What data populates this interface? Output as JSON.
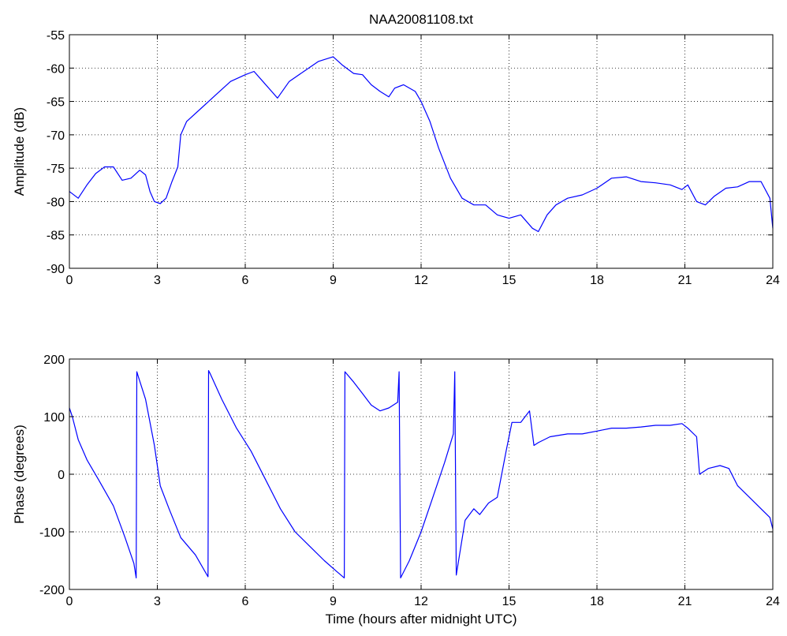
{
  "chart_data": [
    {
      "type": "line",
      "title": "NAA20081108.txt",
      "xlabel": "",
      "ylabel": "Amplitude (dB)",
      "xlim": [
        0,
        24
      ],
      "ylim": [
        -90,
        -55
      ],
      "xticks": [
        0,
        3,
        6,
        9,
        12,
        15,
        18,
        21,
        24
      ],
      "yticks": [
        -90,
        -85,
        -80,
        -75,
        -70,
        -65,
        -60,
        -55
      ],
      "grid": true,
      "color": "#0000ff",
      "x": [
        0,
        0.3,
        0.6,
        0.9,
        1.2,
        1.5,
        1.8,
        2.1,
        2.4,
        2.6,
        2.75,
        2.9,
        3.1,
        3.3,
        3.5,
        3.7,
        3.8,
        4.0,
        4.5,
        5.0,
        5.5,
        6.0,
        6.3,
        6.6,
        6.9,
        7.1,
        7.5,
        8.0,
        8.5,
        9.0,
        9.3,
        9.7,
        10.0,
        10.3,
        10.6,
        10.9,
        11.1,
        11.4,
        11.8,
        12.0,
        12.3,
        12.6,
        13.0,
        13.4,
        13.8,
        14.2,
        14.6,
        15.0,
        15.4,
        15.8,
        16.0,
        16.3,
        16.6,
        17.0,
        17.5,
        18.0,
        18.5,
        19.0,
        19.5,
        20.0,
        20.5,
        20.9,
        21.1,
        21.4,
        21.7,
        22.0,
        22.4,
        22.8,
        23.2,
        23.6,
        23.9,
        24.0
      ],
      "y": [
        -78.5,
        -79.5,
        -77.5,
        -75.8,
        -74.8,
        -74.8,
        -76.8,
        -76.5,
        -75.3,
        -76,
        -78.5,
        -80,
        -80.3,
        -79.5,
        -77,
        -74.8,
        -70,
        -68,
        -66,
        -64,
        -62,
        -61,
        -60.5,
        -62,
        -63.5,
        -64.5,
        -62,
        -60.5,
        -59,
        -58.3,
        -59.5,
        -60.8,
        -61,
        -62.5,
        -63.5,
        -64.3,
        -63,
        -62.5,
        -63.5,
        -65,
        -68,
        -72,
        -76.5,
        -79.5,
        -80.5,
        -80.5,
        -82,
        -82.5,
        -82,
        -84,
        -84.5,
        -82,
        -80.5,
        -79.5,
        -79,
        -78,
        -76.5,
        -76.3,
        -77,
        -77.2,
        -77.5,
        -78.2,
        -77.5,
        -80,
        -80.5,
        -79.2,
        -78,
        -77.8,
        -77,
        -77,
        -79.5,
        -84
      ]
    },
    {
      "type": "line",
      "title": "",
      "xlabel": "Time (hours after midnight UTC)",
      "ylabel": "Phase (degrees)",
      "xlim": [
        0,
        24
      ],
      "ylim": [
        -200,
        200
      ],
      "xticks": [
        0,
        3,
        6,
        9,
        12,
        15,
        18,
        21,
        24
      ],
      "yticks": [
        -200,
        -100,
        0,
        100,
        200
      ],
      "grid": true,
      "color": "#0000ff",
      "x": [
        0,
        0.1,
        0.3,
        0.6,
        1.0,
        1.5,
        1.9,
        2.2,
        2.28,
        2.3,
        2.35,
        2.6,
        2.9,
        3.1,
        3.4,
        3.8,
        4.3,
        4.73,
        4.75,
        4.8,
        5.2,
        5.7,
        6.2,
        6.7,
        7.2,
        7.7,
        8.2,
        8.7,
        9.1,
        9.38,
        9.4,
        9.7,
        10.0,
        10.3,
        10.6,
        10.9,
        11.2,
        11.25,
        11.3,
        11.6,
        12.0,
        12.4,
        12.8,
        13.1,
        13.15,
        13.2,
        13.5,
        13.8,
        14.0,
        14.3,
        14.6,
        14.9,
        15.1,
        15.4,
        15.7,
        15.85,
        16.0,
        16.4,
        17.0,
        17.5,
        18.0,
        18.5,
        19.0,
        19.5,
        20.0,
        20.5,
        20.9,
        21.1,
        21.4,
        21.5,
        21.8,
        22.2,
        22.5,
        22.8,
        23.2,
        23.6,
        23.9,
        24.0
      ],
      "y": [
        115,
        100,
        60,
        25,
        -10,
        -55,
        -110,
        -155,
        -180,
        178,
        170,
        130,
        50,
        -20,
        -60,
        -110,
        -140,
        -178,
        180,
        175,
        130,
        80,
        40,
        -10,
        -60,
        -100,
        -125,
        -150,
        -168,
        -180,
        178,
        160,
        140,
        120,
        110,
        115,
        125,
        178,
        -180,
        -150,
        -100,
        -40,
        20,
        70,
        178,
        -175,
        -80,
        -60,
        -70,
        -50,
        -40,
        40,
        90,
        90,
        110,
        50,
        55,
        65,
        70,
        70,
        75,
        80,
        80,
        82,
        85,
        85,
        88,
        80,
        65,
        0,
        10,
        15,
        10,
        -20,
        -40,
        -60,
        -75,
        -95
      ]
    }
  ]
}
